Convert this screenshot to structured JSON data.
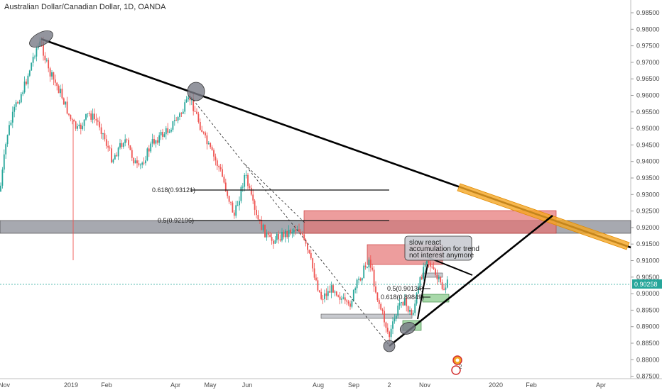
{
  "chart_data": {
    "type": "candlestick",
    "title": "Australian Dollar/Canadian Dollar, 1D, OANDA",
    "y_ticks": [
      "0.98500",
      "0.98000",
      "0.97500",
      "0.97000",
      "0.96500",
      "0.96000",
      "0.95500",
      "0.95000",
      "0.94500",
      "0.94000",
      "0.93500",
      "0.93000",
      "0.92500",
      "0.92000",
      "0.91500",
      "0.91000",
      "0.90500",
      "0.90000",
      "0.89500",
      "0.89000",
      "0.88500",
      "0.88000",
      "0.87500"
    ],
    "x_ticks": [
      "Nov",
      "2019",
      "Feb",
      "Apr",
      "May",
      "Jun",
      "Aug",
      "Sep",
      "2",
      "Nov",
      "2020",
      "Feb",
      "Apr"
    ],
    "ylim": [
      0.874,
      0.988
    ],
    "current_price": "0.90258",
    "current_value": 0.90258,
    "fib_levels": [
      {
        "label": "0.618(0.93121)",
        "value": 0.93121
      },
      {
        "label": "0.5(0.92196)",
        "value": 0.92196
      },
      {
        "label": "0.5(0.90134)",
        "value": 0.90134
      },
      {
        "label": "0.618(0.89849)",
        "value": 0.89849
      }
    ],
    "support_zone": [
      0.9176,
      0.9218
    ],
    "annotation": [
      "slow react",
      "accumulation for trend",
      "not interest anymore"
    ],
    "badge": "2",
    "colors": {
      "up": "#26a69a",
      "down": "#ef5350",
      "zone": "#787b86",
      "supply": "#e57373",
      "trendline_hi": "#f5a623"
    }
  }
}
